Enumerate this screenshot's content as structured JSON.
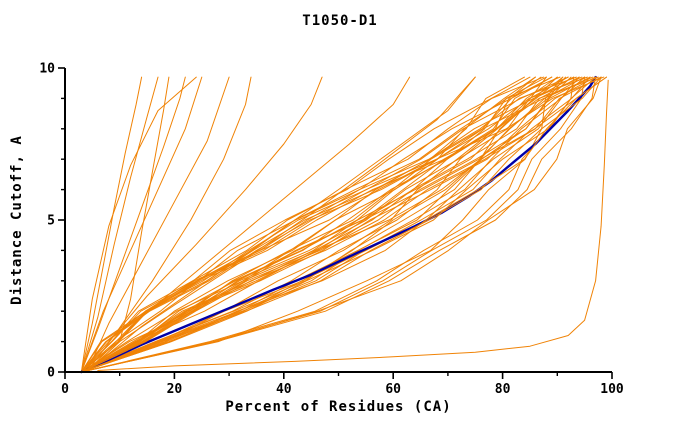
{
  "chart_data": {
    "type": "line",
    "title": "T1050-D1",
    "xlabel": "Percent of Residues (CA)",
    "ylabel": "Distance Cutoff, A",
    "xlim": [
      0,
      100
    ],
    "ylim": [
      0,
      10
    ],
    "x_major_ticks": [
      0,
      20,
      40,
      60,
      80,
      100
    ],
    "x_minor_ticks": [
      10,
      30,
      50,
      70,
      90
    ],
    "y_major_ticks": [
      0,
      5,
      10
    ],
    "y_minor_ticks": [
      1,
      2,
      3,
      4,
      6,
      7,
      8,
      9
    ],
    "grid": false,
    "legend": "none",
    "colors": {
      "model": "#f08306",
      "reference": "#0000a8",
      "axis": "#000000"
    },
    "series_description": {
      "model_curves": "many orange model curves: percent of CA residues under distance cutoff",
      "highlight_curve": "single dark-blue highlighted model curve"
    },
    "sample_cutoffs_y": [
      0,
      1,
      2,
      3,
      4,
      5,
      6,
      7,
      8,
      9,
      9.7
    ],
    "band_x0": 3,
    "band_shapes": {
      "early": [
        0,
        0.27,
        0.46,
        0.6,
        0.71,
        0.795,
        0.86,
        0.91,
        0.95,
        0.98,
        1
      ],
      "mid": [
        0,
        0.17,
        0.31,
        0.45,
        0.57,
        0.67,
        0.755,
        0.83,
        0.895,
        0.95,
        1
      ],
      "late": [
        0,
        0.11,
        0.22,
        0.34,
        0.46,
        0.575,
        0.68,
        0.775,
        0.86,
        0.93,
        1
      ],
      "verylate": [
        0,
        0.06,
        0.14,
        0.235,
        0.345,
        0.46,
        0.575,
        0.69,
        0.8,
        0.9,
        1
      ]
    },
    "model_cluster": [
      [
        84,
        "late"
      ],
      [
        85,
        "verylate"
      ],
      [
        86,
        "mid"
      ],
      [
        86,
        "late"
      ],
      [
        87,
        "late"
      ],
      [
        87.5,
        "verylate"
      ],
      [
        88,
        "mid"
      ],
      [
        88,
        "late"
      ],
      [
        89,
        "verylate"
      ],
      [
        89,
        "late"
      ],
      [
        90,
        "mid"
      ],
      [
        90,
        "late"
      ],
      [
        90.5,
        "verylate"
      ],
      [
        91,
        "late"
      ],
      [
        91,
        "early"
      ],
      [
        91.5,
        "mid"
      ],
      [
        92,
        "late"
      ],
      [
        92,
        "verylate"
      ],
      [
        92.5,
        "mid"
      ],
      [
        93,
        "late"
      ],
      [
        93,
        "early"
      ],
      [
        93.5,
        "verylate"
      ],
      [
        94,
        "mid"
      ],
      [
        94,
        "late"
      ],
      [
        94.5,
        "verylate"
      ],
      [
        95,
        "mid"
      ],
      [
        95,
        "late"
      ],
      [
        95,
        "early"
      ],
      [
        95.5,
        "verylate"
      ],
      [
        96,
        "mid"
      ],
      [
        96,
        "late"
      ],
      [
        96.5,
        "verylate"
      ],
      [
        97,
        "mid"
      ],
      [
        97,
        "late"
      ],
      [
        97,
        "early"
      ],
      [
        97.5,
        "verylate"
      ],
      [
        98,
        "mid"
      ],
      [
        98,
        "late"
      ],
      [
        98,
        "early"
      ],
      [
        98.5,
        "verylate"
      ],
      [
        99,
        "mid"
      ],
      [
        99,
        "late"
      ]
    ],
    "model_outliers": [
      {
        "points": [
          [
            3,
            0
          ],
          [
            5,
            1.6
          ],
          [
            7,
            3.5
          ],
          [
            9,
            5.4
          ],
          [
            11,
            7.2
          ],
          [
            13,
            8.8
          ],
          [
            14,
            9.7
          ]
        ]
      },
      {
        "points": [
          [
            3,
            0
          ],
          [
            6,
            1.8
          ],
          [
            9,
            4.2
          ],
          [
            12,
            6.4
          ],
          [
            15,
            8.4
          ],
          [
            17,
            9.7
          ]
        ]
      },
      {
        "points": [
          [
            3,
            0
          ],
          [
            6,
            1.4
          ],
          [
            10,
            3.4
          ],
          [
            14,
            5.4
          ],
          [
            18,
            7.4
          ],
          [
            21,
            9.0
          ],
          [
            22,
            9.7
          ]
        ]
      },
      {
        "points": [
          [
            3,
            0
          ],
          [
            7,
            2.0
          ],
          [
            12,
            4.0
          ],
          [
            17,
            6.0
          ],
          [
            22,
            8.0
          ],
          [
            25,
            9.7
          ]
        ]
      },
      {
        "points": [
          [
            4,
            0
          ],
          [
            8,
            1.6
          ],
          [
            14,
            3.6
          ],
          [
            20,
            5.6
          ],
          [
            26,
            7.6
          ],
          [
            30,
            9.7
          ]
        ]
      },
      {
        "points": [
          [
            4,
            0
          ],
          [
            9,
            1.2
          ],
          [
            16,
            3.0
          ],
          [
            23,
            5.0
          ],
          [
            29,
            7.0
          ],
          [
            33,
            8.8
          ],
          [
            34,
            9.7
          ]
        ]
      },
      {
        "points": [
          [
            3,
            0
          ],
          [
            5,
            2.4
          ],
          [
            8,
            4.8
          ],
          [
            12,
            6.8
          ],
          [
            17,
            8.6
          ],
          [
            24,
            9.7
          ]
        ]
      },
      {
        "points": [
          [
            4,
            0
          ],
          [
            10,
            1.0
          ],
          [
            12,
            2.4
          ],
          [
            14,
            4.6
          ],
          [
            16,
            6.6
          ],
          [
            18,
            8.6
          ],
          [
            19,
            9.7
          ]
        ]
      },
      {
        "points": [
          [
            4,
            0
          ],
          [
            12,
            1.5
          ],
          [
            22,
            3.0
          ],
          [
            32,
            4.5
          ],
          [
            42,
            6.0
          ],
          [
            52,
            7.5
          ],
          [
            60,
            8.8
          ],
          [
            63,
            9.7
          ]
        ]
      },
      {
        "points": [
          [
            4,
            0
          ],
          [
            14,
            1.5
          ],
          [
            26,
            3.0
          ],
          [
            38,
            4.5
          ],
          [
            50,
            6.0
          ],
          [
            60,
            7.3
          ],
          [
            70,
            8.6
          ],
          [
            75,
            9.7
          ]
        ]
      },
      {
        "points": [
          [
            4,
            0
          ],
          [
            10,
            1.0
          ],
          [
            20,
            2.2
          ],
          [
            32,
            3.6
          ],
          [
            45,
            5.2
          ],
          [
            57,
            6.8
          ],
          [
            68,
            8.3
          ],
          [
            75,
            9.7
          ]
        ]
      },
      {
        "points": [
          [
            3,
            0
          ],
          [
            8,
            1.0
          ],
          [
            15,
            2.5
          ],
          [
            24,
            4.2
          ],
          [
            33,
            6.0
          ],
          [
            40,
            7.5
          ],
          [
            45,
            8.8
          ],
          [
            47,
            9.7
          ]
        ]
      },
      {
        "points": [
          [
            6,
            0.05
          ],
          [
            20,
            0.2
          ],
          [
            42,
            0.35
          ],
          [
            60,
            0.5
          ],
          [
            75,
            0.65
          ],
          [
            85,
            0.85
          ],
          [
            92,
            1.2
          ],
          [
            95,
            1.7
          ],
          [
            97,
            3.0
          ],
          [
            98,
            4.8
          ],
          [
            98.6,
            6.8
          ],
          [
            99,
            8.5
          ],
          [
            99.3,
            9.6
          ]
        ]
      }
    ],
    "highlight_curve": {
      "points": [
        [
          3,
          0
        ],
        [
          8,
          0.4
        ],
        [
          14,
          0.9
        ],
        [
          22,
          1.5
        ],
        [
          30,
          2.1
        ],
        [
          38,
          2.7
        ],
        [
          45,
          3.2
        ],
        [
          52,
          3.8
        ],
        [
          58,
          4.3
        ],
        [
          64,
          4.8
        ],
        [
          69,
          5.25
        ],
        [
          74,
          5.8
        ],
        [
          78,
          6.3
        ],
        [
          82,
          6.9
        ],
        [
          86,
          7.5
        ],
        [
          89,
          8.05
        ],
        [
          92,
          8.6
        ],
        [
          94,
          9.0
        ],
        [
          96,
          9.4
        ],
        [
          97,
          9.7
        ]
      ]
    }
  }
}
